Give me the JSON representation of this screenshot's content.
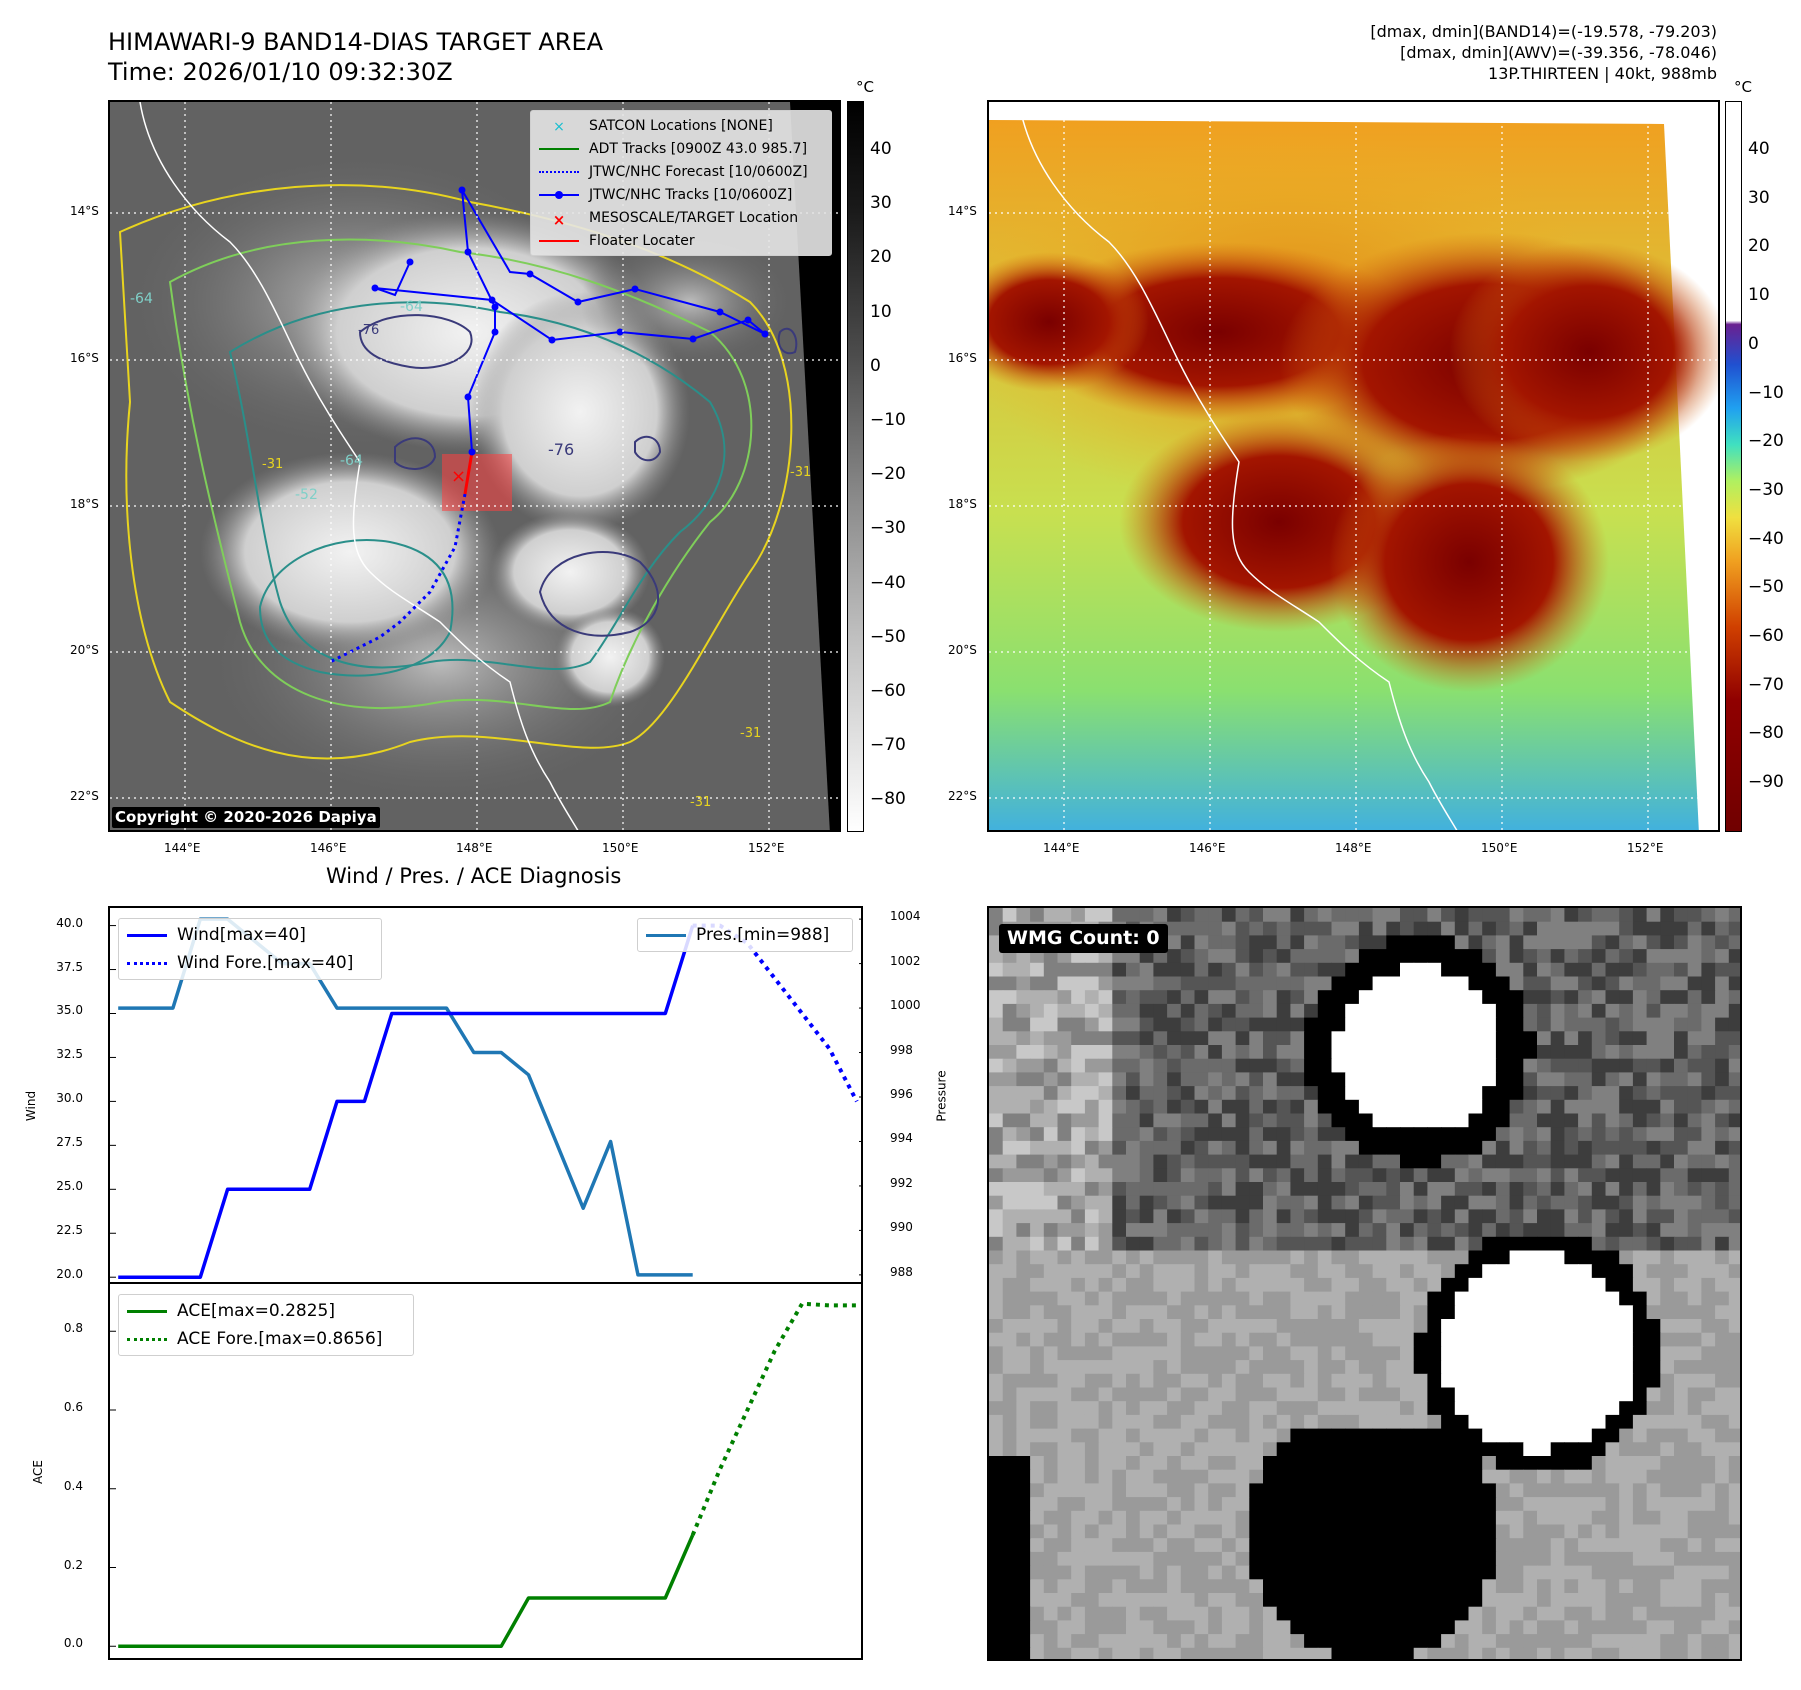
{
  "header": {
    "title_line1": "HIMAWARI-9 BAND14-DIAS TARGET AREA",
    "title_line2": "Time: 2026/01/10 09:32:30Z",
    "info_line1": "[dmax, dmin](BAND14)=(-19.578, -79.203)",
    "info_line2": "[dmax, dmin](AWV)=(-39.356, -78.046)",
    "info_line3": "13P.THIRTEEN | 40kt, 988mb"
  },
  "map_axes": {
    "lat_labels": [
      "14°S",
      "16°S",
      "18°S",
      "20°S",
      "22°S"
    ],
    "lon_labels": [
      "144°E",
      "146°E",
      "148°E",
      "150°E",
      "152°E"
    ]
  },
  "left_map": {
    "legend": [
      {
        "label": "SATCON Locations [NONE]",
        "color": "#17becf",
        "icon": "x-marker"
      },
      {
        "label": "ADT Tracks [0900Z 43.0 985.7]",
        "color": "#008000",
        "icon": "solid-line"
      },
      {
        "label": "JTWC/NHC Forecast [10/0600Z]",
        "color": "#0000ff",
        "icon": "dotted-line"
      },
      {
        "label": "JTWC/NHC Tracks [10/0600Z]",
        "color": "#0000ff",
        "icon": "line-dot"
      },
      {
        "label": "MESOSCALE/TARGET Location",
        "color": "#ff0000",
        "icon": "x-marker"
      },
      {
        "label": "Floater Locater",
        "color": "#ff0000",
        "icon": "solid-line"
      }
    ],
    "copyright": "Copyright © 2020-2026 Dapiya",
    "contour_labels": [
      "-64",
      "-64",
      "-76",
      "-52",
      "-64",
      "-76",
      "-31",
      "-31",
      "-31",
      "-31"
    ]
  },
  "colorbar_left": {
    "unit": "°C",
    "ticks": [
      "40",
      "30",
      "20",
      "10",
      "0",
      "−10",
      "−20",
      "−30",
      "−40",
      "−50",
      "−60",
      "−70",
      "−80"
    ]
  },
  "colorbar_right": {
    "unit": "°C",
    "ticks": [
      "40",
      "30",
      "20",
      "10",
      "0",
      "−10",
      "−20",
      "−30",
      "−40",
      "−50",
      "−60",
      "−70",
      "−80",
      "−90"
    ]
  },
  "diagnosis": {
    "title": "Wind / Pres. / ACE Diagnosis",
    "wind_ylabel": "Wind",
    "pres_ylabel": "Pressure",
    "ace_ylabel": "ACE",
    "legend_wind": "Wind[max=40]",
    "legend_wind_fore": "Wind Fore.[max=40]",
    "legend_pres": "Pres.[min=988]",
    "legend_ace": "ACE[max=0.2825]",
    "legend_ace_fore": "ACE Fore.[max=0.8656]"
  },
  "wmg": {
    "label": "WMG Count: 0"
  },
  "chart_data": [
    {
      "type": "line",
      "title": "Wind / Pres. / ACE Diagnosis",
      "ylabel": "Wind",
      "ylim": [
        19.5,
        41
      ],
      "yticks": [
        "40.0",
        "37.5",
        "35.0",
        "32.5",
        "30.0",
        "27.5",
        "25.0",
        "22.5",
        "20.0"
      ],
      "series": [
        {
          "name": "Wind[max=40]",
          "style": "solid",
          "color": "#0000ff",
          "x": [
            0,
            2,
            3,
            4,
            5,
            6,
            7,
            8,
            9,
            10,
            11,
            12,
            13,
            14,
            15,
            16,
            17,
            18,
            19,
            20,
            21
          ],
          "values": [
            20,
            20,
            20,
            25,
            25,
            25,
            25,
            30,
            30,
            35,
            35,
            35,
            35,
            35,
            35,
            35,
            35,
            35,
            35,
            35,
            40
          ]
        },
        {
          "name": "Wind Fore.[max=40]",
          "style": "dotted",
          "color": "#0000ff",
          "x": [
            21,
            22,
            23,
            24,
            25,
            26,
            27
          ],
          "values": [
            40,
            40,
            39,
            37,
            35,
            33,
            30
          ]
        }
      ]
    },
    {
      "type": "line",
      "ylabel": "Pressure",
      "ylim": [
        987.5,
        1004.5
      ],
      "yticks": [
        "1004",
        "1002",
        "1000",
        "998",
        "996",
        "994",
        "992",
        "990",
        "988"
      ],
      "series": [
        {
          "name": "Pres.[min=988]",
          "style": "solid",
          "color": "#1f77b4",
          "x": [
            0,
            2,
            3,
            4,
            5,
            6,
            7,
            8,
            9,
            10,
            11,
            12,
            13,
            14,
            15,
            16,
            17,
            18,
            19,
            20,
            21
          ],
          "values": [
            1000,
            1000,
            1004,
            1004,
            1003,
            1002,
            1002,
            1000,
            1000,
            1000,
            1000,
            1000,
            998,
            998,
            997,
            994,
            991,
            994,
            988,
            988,
            988
          ]
        }
      ]
    },
    {
      "type": "line",
      "ylabel": "ACE",
      "ylim": [
        -0.04,
        0.92
      ],
      "yticks": [
        "0.8",
        "0.6",
        "0.4",
        "0.2",
        "0.0"
      ],
      "series": [
        {
          "name": "ACE[max=0.2825]",
          "style": "solid",
          "color": "#008000",
          "x": [
            0,
            14,
            15,
            16,
            17,
            18,
            19,
            20,
            21
          ],
          "values": [
            0,
            0,
            0.1225,
            0.1225,
            0.1225,
            0.1225,
            0.1225,
            0.1225,
            0.2825
          ]
        },
        {
          "name": "ACE Fore.[max=0.8656]",
          "style": "dotted",
          "color": "#008000",
          "x": [
            21,
            22,
            23,
            24,
            25,
            26,
            27
          ],
          "values": [
            0.2825,
            0.45,
            0.6,
            0.75,
            0.87,
            0.8656,
            0.8656
          ]
        }
      ]
    }
  ]
}
